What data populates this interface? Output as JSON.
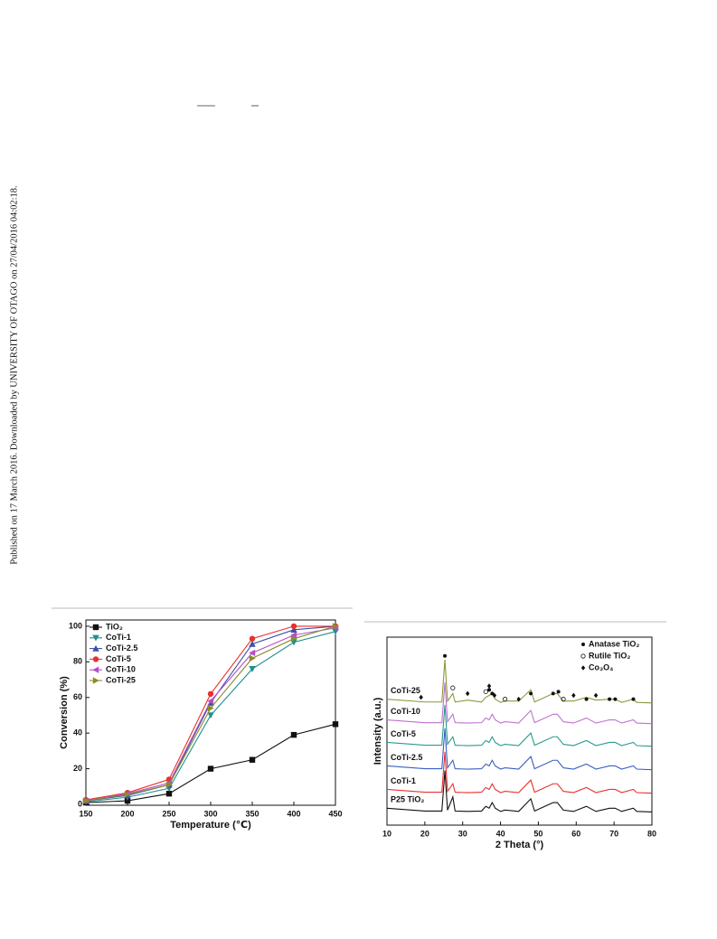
{
  "side_note": "Published on 17 March 2016. Downloaded by UNIVERSITY OF OTAGO on 27/04/2016 04:02:18.",
  "chart_data": [
    {
      "type": "line",
      "x_label": "Temperature (℃)",
      "y_label": "Conversion (%)",
      "x": [
        150,
        200,
        250,
        300,
        350,
        400,
        450
      ],
      "xlim": [
        150,
        450
      ],
      "xticks": [
        150,
        200,
        250,
        300,
        350,
        400,
        450
      ],
      "ylim": [
        -0.5,
        103.5
      ],
      "yticks": [
        0,
        20,
        40,
        60,
        80,
        100
      ],
      "legend": "upper left",
      "series": [
        {
          "name": "TiO₂",
          "color": "#111111",
          "marker": "square",
          "values": [
            1,
            2,
            6,
            20,
            25,
            39,
            45
          ]
        },
        {
          "name": "CoTi-1",
          "color": "#1f8f8f",
          "marker": "triangle-down",
          "values": [
            1.5,
            4,
            9,
            50,
            76,
            91,
            97
          ]
        },
        {
          "name": "CoTi-2.5",
          "color": "#3a4fa8",
          "marker": "triangle-up",
          "values": [
            2,
            5,
            11,
            57,
            90,
            98,
            100
          ]
        },
        {
          "name": "CoTi-5",
          "color": "#e8312c",
          "marker": "circle",
          "values": [
            2.5,
            6.5,
            14,
            62,
            93,
            100,
            100
          ]
        },
        {
          "name": "CoTi-10",
          "color": "#b54fc8",
          "marker": "triangle-left",
          "values": [
            2,
            6,
            12,
            58,
            85,
            95,
            99
          ]
        },
        {
          "name": "CoTi-25",
          "color": "#8b8b2b",
          "marker": "triangle-right",
          "values": [
            2,
            5.5,
            11,
            54,
            82,
            93,
            100
          ]
        }
      ]
    },
    {
      "type": "line",
      "x_label": "2 Theta (°)",
      "y_label": "Intensity (a.u.)",
      "x": [
        10,
        20,
        24.5,
        25.3,
        26,
        27.4,
        28,
        31.3,
        35,
        36.1,
        37,
        37.8,
        38.6,
        40,
        41.2,
        44.8,
        48,
        49,
        53.9,
        55,
        56.6,
        59.3,
        62.7,
        65.2,
        68.8,
        70.3,
        72,
        75.1,
        76,
        80
      ],
      "xlim": [
        10,
        80
      ],
      "xticks": [
        10,
        20,
        30,
        40,
        50,
        60,
        70,
        80
      ],
      "ylim": [
        0,
        100
      ],
      "series_labels": "inline",
      "series": [
        {
          "name": "P25 TiO₂",
          "color": "#111111",
          "values": [
            9,
            7.5,
            7.5,
            29,
            8,
            15,
            7.5,
            7.3,
            7.5,
            10,
            9,
            12,
            9,
            7.3,
            8,
            7.3,
            14,
            7.5,
            12,
            12,
            8,
            7.3,
            10,
            7.3,
            9,
            9,
            7.3,
            9,
            7.3,
            7
          ]
        },
        {
          "name": "CoTi-1",
          "color": "#e8312c",
          "values": [
            19,
            17.5,
            17.5,
            39,
            18,
            22,
            17.5,
            17.3,
            17.5,
            20,
            19,
            22,
            19,
            17.3,
            18,
            17.3,
            24,
            17.5,
            22,
            22,
            18,
            17.3,
            20,
            17.3,
            19,
            19,
            17.3,
            19,
            17.3,
            17
          ]
        },
        {
          "name": "CoTi-2.5",
          "color": "#3a5fc0",
          "values": [
            31.5,
            30,
            30,
            51.5,
            30.5,
            34.5,
            30,
            29.8,
            30,
            32.5,
            31.5,
            34.5,
            31.5,
            29.8,
            30.5,
            29.8,
            36.5,
            30,
            34.5,
            34.5,
            30.5,
            29.8,
            32.5,
            29.8,
            31.5,
            31.5,
            29.8,
            31.5,
            29.8,
            29.5
          ]
        },
        {
          "name": "CoTi-5",
          "color": "#2a9a8f",
          "values": [
            44,
            42.5,
            42.5,
            64,
            43,
            47,
            42.5,
            42.3,
            42.5,
            45,
            44,
            47,
            44,
            42.3,
            43,
            42.3,
            49,
            42.5,
            47,
            47,
            43,
            42.3,
            45,
            42.3,
            44,
            44,
            42.3,
            44,
            42.3,
            42
          ]
        },
        {
          "name": "CoTi-10",
          "color": "#c070d0",
          "values": [
            56,
            54.5,
            54.5,
            76,
            55,
            59,
            54.5,
            54.3,
            54.5,
            57,
            56,
            59,
            56,
            54.3,
            55,
            54.3,
            61,
            54.5,
            59,
            59,
            55,
            54.3,
            57,
            54.3,
            56,
            56,
            54.3,
            56,
            54.3,
            54
          ]
        },
        {
          "name": "CoTi-25",
          "color": "#8a9a3a",
          "values": [
            67,
            65.5,
            65.5,
            88,
            66,
            70,
            65.5,
            66.5,
            65.5,
            68,
            69,
            70,
            67,
            65.3,
            66,
            66,
            72,
            65.5,
            70,
            70,
            66,
            66,
            68,
            66.5,
            67,
            67,
            65.3,
            67,
            65.3,
            65
          ]
        }
      ],
      "annotations": [
        {
          "label": "Anatase TiO₂",
          "marker": "dot",
          "x": [
            25.3,
            37,
            37.8,
            48,
            53.9,
            55.3,
            62.7,
            68.8,
            70.3,
            75.1
          ],
          "y": [
            90,
            72,
            70,
            70,
            70,
            71,
            67,
            67,
            67,
            67
          ]
        },
        {
          "label": "Rutile TiO₂",
          "marker": "ring",
          "x": [
            27.4,
            36.1,
            41.2,
            56.6
          ],
          "y": [
            73,
            71,
            67,
            67
          ]
        },
        {
          "label": "Co₃O₄",
          "marker": "diamond",
          "x": [
            19,
            31.3,
            37,
            38.4,
            44.8,
            59.3,
            65.2
          ],
          "y": [
            68,
            70,
            74,
            69,
            67,
            69,
            69
          ]
        }
      ]
    }
  ]
}
